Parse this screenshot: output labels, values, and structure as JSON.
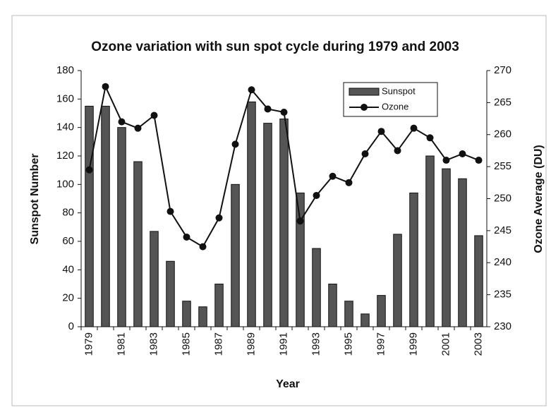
{
  "chart_data": {
    "type": "bar_line",
    "title": "Ozone variation with sun spot cycle during 1979 and 2003",
    "xlabel": "Year",
    "ylabel": "Sunspot Number",
    "y2label": "Ozone Average (DU)",
    "categories": [
      "1979",
      null,
      "1981",
      null,
      "1983",
      null,
      "1985",
      null,
      "1987",
      null,
      "1989",
      null,
      "1991",
      null,
      "1993",
      null,
      "1995",
      null,
      "1997",
      null,
      "1999",
      null,
      "2001",
      null,
      "2003"
    ],
    "series": [
      {
        "name": "Sunspot",
        "type": "bar",
        "color": "#555555",
        "values": [
          155,
          155,
          140,
          116,
          67,
          46,
          18,
          14,
          30,
          100,
          158,
          143,
          146,
          94,
          55,
          30,
          18,
          9,
          22,
          65,
          94,
          120,
          111,
          104,
          64
        ]
      },
      {
        "name": "Ozone",
        "type": "line",
        "axis": "y2",
        "color": "#111111",
        "values": [
          254.5,
          267.5,
          262,
          261,
          263,
          248,
          244,
          242.5,
          247,
          258.5,
          267,
          264,
          263.5,
          246.5,
          250.5,
          253.5,
          252.5,
          257,
          260.5,
          257.5,
          261,
          259.5,
          256,
          257,
          256
        ]
      }
    ],
    "ylim": [
      0,
      180
    ],
    "yticks": [
      0,
      20,
      40,
      60,
      80,
      100,
      120,
      140,
      160,
      180
    ],
    "y2lim": [
      230,
      270
    ],
    "y2ticks": [
      230,
      235,
      240,
      245,
      250,
      255,
      260,
      265,
      270
    ],
    "legend": "upper right"
  }
}
